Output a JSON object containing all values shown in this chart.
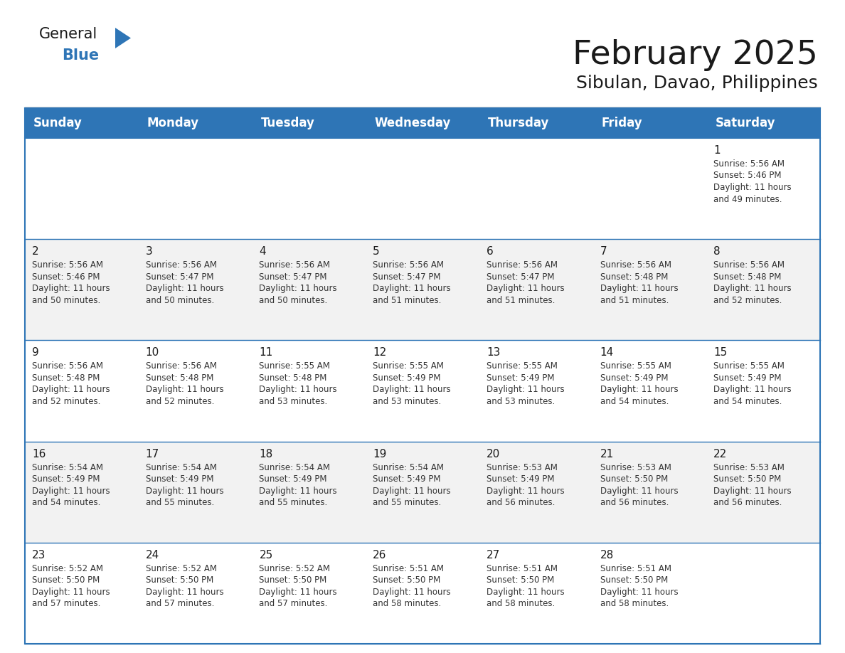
{
  "title": "February 2025",
  "subtitle": "Sibulan, Davao, Philippines",
  "header_bg_color": "#2E75B6",
  "header_text_color": "#FFFFFF",
  "cell_bg_white": "#FFFFFF",
  "cell_bg_gray": "#F2F2F2",
  "cell_border_color": "#2E75B6",
  "day_number_color": "#1a1a1a",
  "text_color": "#333333",
  "background_color": "#FFFFFF",
  "days_of_week": [
    "Sunday",
    "Monday",
    "Tuesday",
    "Wednesday",
    "Thursday",
    "Friday",
    "Saturday"
  ],
  "weeks": [
    [
      {
        "day": null,
        "info": null
      },
      {
        "day": null,
        "info": null
      },
      {
        "day": null,
        "info": null
      },
      {
        "day": null,
        "info": null
      },
      {
        "day": null,
        "info": null
      },
      {
        "day": null,
        "info": null
      },
      {
        "day": 1,
        "info": "Sunrise: 5:56 AM\nSunset: 5:46 PM\nDaylight: 11 hours\nand 49 minutes."
      }
    ],
    [
      {
        "day": 2,
        "info": "Sunrise: 5:56 AM\nSunset: 5:46 PM\nDaylight: 11 hours\nand 50 minutes."
      },
      {
        "day": 3,
        "info": "Sunrise: 5:56 AM\nSunset: 5:47 PM\nDaylight: 11 hours\nand 50 minutes."
      },
      {
        "day": 4,
        "info": "Sunrise: 5:56 AM\nSunset: 5:47 PM\nDaylight: 11 hours\nand 50 minutes."
      },
      {
        "day": 5,
        "info": "Sunrise: 5:56 AM\nSunset: 5:47 PM\nDaylight: 11 hours\nand 51 minutes."
      },
      {
        "day": 6,
        "info": "Sunrise: 5:56 AM\nSunset: 5:47 PM\nDaylight: 11 hours\nand 51 minutes."
      },
      {
        "day": 7,
        "info": "Sunrise: 5:56 AM\nSunset: 5:48 PM\nDaylight: 11 hours\nand 51 minutes."
      },
      {
        "day": 8,
        "info": "Sunrise: 5:56 AM\nSunset: 5:48 PM\nDaylight: 11 hours\nand 52 minutes."
      }
    ],
    [
      {
        "day": 9,
        "info": "Sunrise: 5:56 AM\nSunset: 5:48 PM\nDaylight: 11 hours\nand 52 minutes."
      },
      {
        "day": 10,
        "info": "Sunrise: 5:56 AM\nSunset: 5:48 PM\nDaylight: 11 hours\nand 52 minutes."
      },
      {
        "day": 11,
        "info": "Sunrise: 5:55 AM\nSunset: 5:48 PM\nDaylight: 11 hours\nand 53 minutes."
      },
      {
        "day": 12,
        "info": "Sunrise: 5:55 AM\nSunset: 5:49 PM\nDaylight: 11 hours\nand 53 minutes."
      },
      {
        "day": 13,
        "info": "Sunrise: 5:55 AM\nSunset: 5:49 PM\nDaylight: 11 hours\nand 53 minutes."
      },
      {
        "day": 14,
        "info": "Sunrise: 5:55 AM\nSunset: 5:49 PM\nDaylight: 11 hours\nand 54 minutes."
      },
      {
        "day": 15,
        "info": "Sunrise: 5:55 AM\nSunset: 5:49 PM\nDaylight: 11 hours\nand 54 minutes."
      }
    ],
    [
      {
        "day": 16,
        "info": "Sunrise: 5:54 AM\nSunset: 5:49 PM\nDaylight: 11 hours\nand 54 minutes."
      },
      {
        "day": 17,
        "info": "Sunrise: 5:54 AM\nSunset: 5:49 PM\nDaylight: 11 hours\nand 55 minutes."
      },
      {
        "day": 18,
        "info": "Sunrise: 5:54 AM\nSunset: 5:49 PM\nDaylight: 11 hours\nand 55 minutes."
      },
      {
        "day": 19,
        "info": "Sunrise: 5:54 AM\nSunset: 5:49 PM\nDaylight: 11 hours\nand 55 minutes."
      },
      {
        "day": 20,
        "info": "Sunrise: 5:53 AM\nSunset: 5:49 PM\nDaylight: 11 hours\nand 56 minutes."
      },
      {
        "day": 21,
        "info": "Sunrise: 5:53 AM\nSunset: 5:50 PM\nDaylight: 11 hours\nand 56 minutes."
      },
      {
        "day": 22,
        "info": "Sunrise: 5:53 AM\nSunset: 5:50 PM\nDaylight: 11 hours\nand 56 minutes."
      }
    ],
    [
      {
        "day": 23,
        "info": "Sunrise: 5:52 AM\nSunset: 5:50 PM\nDaylight: 11 hours\nand 57 minutes."
      },
      {
        "day": 24,
        "info": "Sunrise: 5:52 AM\nSunset: 5:50 PM\nDaylight: 11 hours\nand 57 minutes."
      },
      {
        "day": 25,
        "info": "Sunrise: 5:52 AM\nSunset: 5:50 PM\nDaylight: 11 hours\nand 57 minutes."
      },
      {
        "day": 26,
        "info": "Sunrise: 5:51 AM\nSunset: 5:50 PM\nDaylight: 11 hours\nand 58 minutes."
      },
      {
        "day": 27,
        "info": "Sunrise: 5:51 AM\nSunset: 5:50 PM\nDaylight: 11 hours\nand 58 minutes."
      },
      {
        "day": 28,
        "info": "Sunrise: 5:51 AM\nSunset: 5:50 PM\nDaylight: 11 hours\nand 58 minutes."
      },
      {
        "day": null,
        "info": null
      }
    ]
  ],
  "logo_text_general": "General",
  "logo_text_blue": "Blue",
  "logo_triangle_color": "#2E75B6",
  "title_fontsize": 34,
  "subtitle_fontsize": 18,
  "header_fontsize": 12,
  "day_number_fontsize": 11,
  "cell_text_fontsize": 8.5,
  "logo_fontsize": 15
}
